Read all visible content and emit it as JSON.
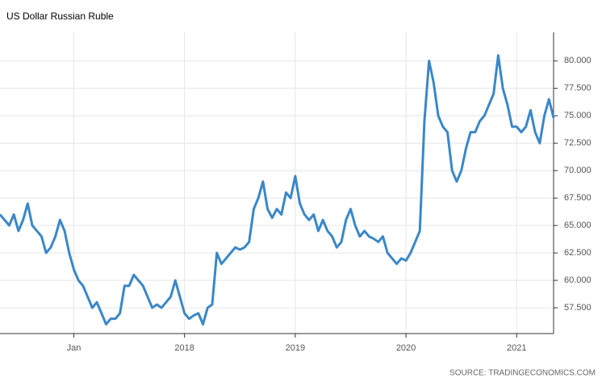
{
  "chart_data": {
    "type": "line",
    "title": "US Dollar Russian Ruble",
    "source": "SOURCE: TRADINGECONOMICS.COM",
    "categories": [
      null,
      null,
      null,
      null,
      null,
      null,
      null,
      null,
      null,
      null,
      null,
      null,
      null,
      null,
      null,
      null,
      "Jan",
      null,
      null,
      null,
      null,
      null,
      null,
      null,
      null,
      null,
      null,
      null,
      null,
      null,
      null,
      null,
      null,
      null,
      null,
      null,
      null,
      null,
      null,
      null,
      "2018",
      null,
      null,
      null,
      null,
      null,
      null,
      null,
      null,
      null,
      null,
      null,
      null,
      null,
      null,
      null,
      null,
      null,
      null,
      null,
      null,
      null,
      null,
      null,
      "2019",
      null,
      null,
      null,
      null,
      null,
      null,
      null,
      null,
      null,
      null,
      null,
      null,
      null,
      null,
      null,
      null,
      null,
      null,
      null,
      null,
      null,
      null,
      null,
      "2020",
      null,
      null,
      null,
      null,
      null,
      null,
      null,
      null,
      null,
      null,
      null,
      null,
      null,
      null,
      null,
      null,
      null,
      null,
      null,
      null,
      null,
      null,
      null,
      "2021",
      null,
      null,
      null,
      null,
      null,
      null,
      null,
      null
    ],
    "values": [
      66,
      65.5,
      65,
      66,
      64.5,
      65.5,
      67,
      65,
      64.5,
      64,
      62.5,
      63,
      64,
      65.5,
      64.5,
      62.5,
      61,
      60,
      59.5,
      58.5,
      57.5,
      58,
      57,
      56,
      56.5,
      56.5,
      57,
      59.5,
      59.5,
      60.5,
      60,
      59.5,
      58.5,
      57.5,
      57.8,
      57.5,
      58,
      58.5,
      60,
      58.5,
      57,
      56.5,
      56.8,
      57,
      56,
      57.5,
      57.8,
      62.5,
      61.5,
      62,
      62.5,
      63,
      62.8,
      63,
      63.5,
      66.5,
      67.5,
      69,
      66.5,
      65.7,
      66.5,
      66,
      68,
      67.5,
      69.5,
      67,
      66,
      65.5,
      66,
      64.5,
      65.5,
      64.5,
      64,
      63,
      63.5,
      65.5,
      66.5,
      65,
      64,
      64.5,
      64,
      63.8,
      63.5,
      64,
      62.5,
      62,
      61.5,
      62,
      61.8,
      62.5,
      63.5,
      64.5,
      74.5,
      80,
      78,
      75,
      74,
      73.5,
      70,
      69,
      70,
      72,
      73.5,
      73.5,
      74.5,
      75,
      76,
      77,
      80.5,
      77.5,
      76,
      74,
      74,
      73.5,
      74,
      75.5,
      73.5,
      72.5,
      75,
      76.5,
      74.8
    ],
    "color": "#3a87c8",
    "ylim": [
      55.15,
      82.6
    ],
    "yticks": [
      {
        "value": 57.5,
        "label": "57.500"
      },
      {
        "value": 60,
        "label": "60.000"
      },
      {
        "value": 62.5,
        "label": "62.500"
      },
      {
        "value": 65,
        "label": "65.000"
      },
      {
        "value": 67.5,
        "label": "67.500"
      },
      {
        "value": 70,
        "label": "70.000"
      },
      {
        "value": 72.5,
        "label": "72.500"
      },
      {
        "value": 75,
        "label": "75.000"
      },
      {
        "value": 77.5,
        "label": "77.500"
      },
      {
        "value": 80,
        "label": "80.000"
      }
    ],
    "grid": true
  }
}
